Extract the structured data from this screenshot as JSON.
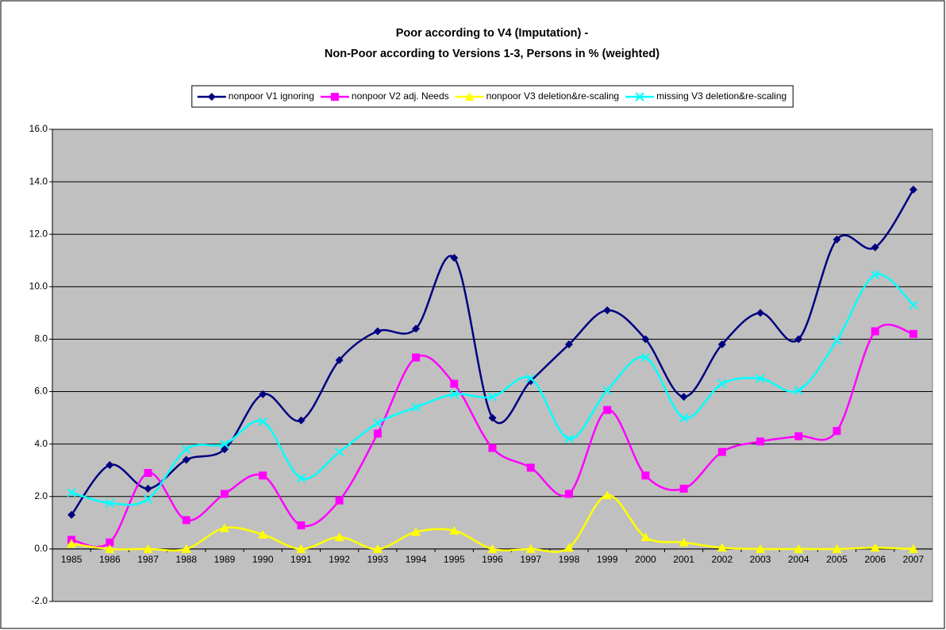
{
  "chart_data": {
    "type": "line",
    "title": "Poor according to V4 (Imputation) -",
    "subtitle": "Non-Poor according to Versions 1-3, Persons in % (weighted)",
    "categories": [
      "1985",
      "1986",
      "1987",
      "1988",
      "1989",
      "1990",
      "1991",
      "1992",
      "1993",
      "1994",
      "1995",
      "1996",
      "1997",
      "1998",
      "1999",
      "2000",
      "2001",
      "2002",
      "2003",
      "2004",
      "2005",
      "2006",
      "2007"
    ],
    "series": [
      {
        "name": "nonpoor V1 ignoring",
        "color": "#000080",
        "marker": "diamond",
        "values": [
          1.3,
          3.2,
          2.3,
          3.4,
          3.8,
          5.9,
          4.9,
          7.2,
          8.3,
          8.4,
          11.1,
          5.0,
          6.4,
          7.8,
          9.1,
          8.0,
          5.8,
          7.8,
          9.0,
          8.0,
          11.8,
          11.5,
          13.7
        ]
      },
      {
        "name": "nonpoor V2 adj. Needs",
        "color": "#ff00ff",
        "marker": "square",
        "values": [
          0.35,
          0.25,
          2.9,
          1.1,
          2.1,
          2.8,
          0.9,
          1.85,
          4.4,
          7.3,
          6.3,
          3.85,
          3.1,
          2.1,
          5.3,
          2.8,
          2.3,
          3.7,
          4.1,
          4.3,
          4.5,
          8.3,
          8.2
        ]
      },
      {
        "name": "nonpoor V3 deletion&re-scaling",
        "color": "#ffff00",
        "marker": "triangle",
        "values": [
          0.2,
          0.0,
          0.0,
          0.0,
          0.8,
          0.55,
          0.0,
          0.45,
          0.0,
          0.65,
          0.7,
          0.0,
          0.0,
          0.05,
          2.05,
          0.45,
          0.25,
          0.05,
          0.0,
          0.0,
          0.0,
          0.05,
          0.0
        ]
      },
      {
        "name": "missing V3 deletion&re-scaling",
        "color": "#00ffff",
        "marker": "x",
        "values": [
          2.15,
          1.75,
          1.9,
          3.8,
          4.0,
          4.85,
          2.7,
          3.7,
          4.8,
          5.4,
          5.9,
          5.8,
          6.5,
          4.2,
          6.05,
          7.3,
          5.0,
          6.3,
          6.5,
          6.05,
          7.95,
          10.45,
          9.3
        ]
      }
    ],
    "ylim": [
      -2,
      16
    ],
    "yticks": [
      {
        "value": -2,
        "label": "-2.0"
      },
      {
        "value": 0,
        "label": "0.0"
      },
      {
        "value": 2,
        "label": "2.0"
      },
      {
        "value": 4,
        "label": "4.0"
      },
      {
        "value": 6,
        "label": "6.0"
      },
      {
        "value": 8,
        "label": "8.0"
      },
      {
        "value": 10,
        "label": "10.0"
      },
      {
        "value": 12,
        "label": "12.0"
      },
      {
        "value": 14,
        "label": "14.0"
      },
      {
        "value": 16,
        "label": "16.0"
      }
    ],
    "grid": true,
    "smooth": true,
    "legend": "top",
    "plot_background": "#c0c0c0"
  }
}
